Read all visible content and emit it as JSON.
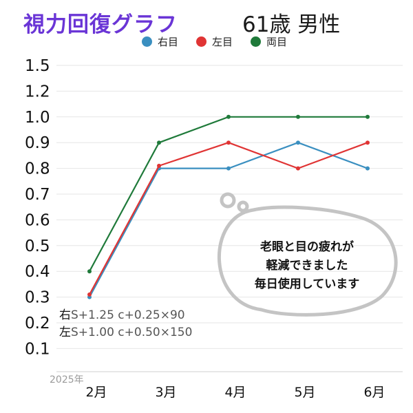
{
  "header": {
    "title": "視力回復グラフ",
    "subtitle": "61歳 男性"
  },
  "legend": [
    {
      "label": "右目",
      "color": "#3a8fc0"
    },
    {
      "label": "左目",
      "color": "#e03434"
    },
    {
      "label": "両目",
      "color": "#1f7a3a"
    }
  ],
  "chart_data": {
    "type": "line",
    "year_label": "2025年",
    "categories": [
      "2月",
      "3月",
      "4月",
      "5月",
      "6月"
    ],
    "y_ticks": [
      "1.5",
      "1.2",
      "1.0",
      "0.9",
      "0.8",
      "0.7",
      "0.6",
      "0.5",
      "0.4",
      "0.3",
      "0.2",
      "0.1"
    ],
    "series": [
      {
        "name": "右目",
        "color": "#3a8fc0",
        "values": [
          0.3,
          0.8,
          0.8,
          0.9,
          0.8
        ]
      },
      {
        "name": "左目",
        "color": "#e03434",
        "values": [
          0.31,
          0.81,
          0.9,
          0.8,
          0.9
        ]
      },
      {
        "name": "両目",
        "color": "#1f7a3a",
        "values": [
          0.4,
          0.9,
          1.0,
          1.0,
          1.0
        ]
      }
    ]
  },
  "prescription": {
    "right_label": "右",
    "right_value": "S+1.25 c+0.25×90",
    "left_label": "左",
    "left_value": "S+1.00 c+0.50×150"
  },
  "bubble": {
    "lines": [
      "老眼と目の疲れが",
      "軽減できました",
      "毎日使用しています"
    ]
  }
}
